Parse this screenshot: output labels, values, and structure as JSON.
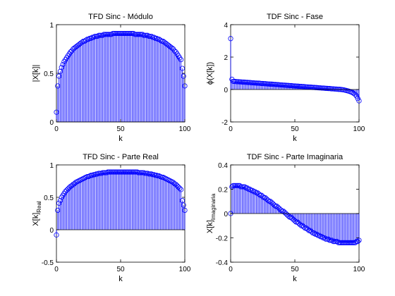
{
  "colors": {
    "stem": "#0000ff",
    "axes": "#000000",
    "background": "#ffffff"
  },
  "chart_data": [
    {
      "id": "p1",
      "type": "stem",
      "title": "TFD Sinc - Módulo",
      "xlabel": "k",
      "ylabel": "|X[k]|",
      "ylabel_main": "|X[k]|",
      "ylabel_sub": "",
      "xlim": [
        0,
        100
      ],
      "ylim": [
        0,
        1
      ],
      "xticks": [
        0,
        50,
        100
      ],
      "yticks": [
        0,
        0.5,
        1
      ],
      "xticklabels": [
        "0",
        "50",
        "100"
      ],
      "yticklabels": [
        "0",
        "0.5",
        "1"
      ],
      "x_start": 0,
      "x_step": 1,
      "values": [
        0.1,
        0.37,
        0.47,
        0.52,
        0.56,
        0.59,
        0.62,
        0.64,
        0.66,
        0.68,
        0.7,
        0.72,
        0.73,
        0.75,
        0.76,
        0.77,
        0.78,
        0.79,
        0.8,
        0.81,
        0.82,
        0.83,
        0.83,
        0.84,
        0.85,
        0.85,
        0.86,
        0.86,
        0.87,
        0.87,
        0.88,
        0.88,
        0.88,
        0.89,
        0.89,
        0.89,
        0.89,
        0.9,
        0.9,
        0.9,
        0.9,
        0.9,
        0.9,
        0.9,
        0.91,
        0.91,
        0.91,
        0.91,
        0.91,
        0.91,
        0.91,
        0.91,
        0.91,
        0.91,
        0.91,
        0.91,
        0.91,
        0.91,
        0.91,
        0.91,
        0.91,
        0.9,
        0.9,
        0.9,
        0.9,
        0.9,
        0.9,
        0.9,
        0.89,
        0.89,
        0.89,
        0.89,
        0.88,
        0.88,
        0.88,
        0.87,
        0.87,
        0.86,
        0.86,
        0.85,
        0.85,
        0.84,
        0.83,
        0.83,
        0.82,
        0.81,
        0.8,
        0.79,
        0.78,
        0.77,
        0.76,
        0.75,
        0.73,
        0.72,
        0.7,
        0.68,
        0.66,
        0.64,
        0.55,
        0.47,
        0.37
      ]
    },
    {
      "id": "p2",
      "type": "stem",
      "title": "TDF Sinc - Fase",
      "xlabel": "k",
      "ylabel": "ϕ(X[k])",
      "ylabel_main": "ϕ(X[k])",
      "ylabel_sub": "",
      "xlim": [
        0,
        100
      ],
      "ylim": [
        -2,
        4
      ],
      "xticks": [
        0,
        50,
        100
      ],
      "yticks": [
        -2,
        0,
        2,
        4
      ],
      "xticklabels": [
        "0",
        "50",
        "100"
      ],
      "yticklabels": [
        "-2",
        "0",
        "2",
        "4"
      ],
      "x_start": 0,
      "x_step": 1,
      "values": [
        3.14,
        0.63,
        0.5,
        0.5,
        0.49,
        0.48,
        0.48,
        0.47,
        0.47,
        0.46,
        0.46,
        0.45,
        0.44,
        0.44,
        0.43,
        0.43,
        0.42,
        0.41,
        0.41,
        0.4,
        0.4,
        0.39,
        0.39,
        0.38,
        0.37,
        0.37,
        0.36,
        0.36,
        0.35,
        0.34,
        0.34,
        0.33,
        0.33,
        0.32,
        0.31,
        0.31,
        0.3,
        0.3,
        0.29,
        0.28,
        0.28,
        0.27,
        0.27,
        0.26,
        0.25,
        0.25,
        0.24,
        0.24,
        0.23,
        0.22,
        0.22,
        0.21,
        0.21,
        0.2,
        0.19,
        0.19,
        0.18,
        0.18,
        0.17,
        0.16,
        0.16,
        0.15,
        0.15,
        0.14,
        0.13,
        0.13,
        0.12,
        0.12,
        0.11,
        0.1,
        0.1,
        0.09,
        0.09,
        0.08,
        0.07,
        0.07,
        0.06,
        0.06,
        0.05,
        0.04,
        0.04,
        0.03,
        0.03,
        0.02,
        0.01,
        0.01,
        0.0,
        -0.01,
        -0.02,
        -0.04,
        -0.06,
        -0.08,
        -0.1,
        -0.13,
        -0.16,
        -0.2,
        -0.25,
        -0.31,
        -0.4,
        -0.55,
        -0.7
      ]
    },
    {
      "id": "p3",
      "type": "stem",
      "title": "TFD Sinc - Parte Real",
      "xlabel": "k",
      "ylabel": "X[k]Real",
      "ylabel_main": "X[k]",
      "ylabel_sub": "Real",
      "xlim": [
        0,
        100
      ],
      "ylim": [
        -0.5,
        1
      ],
      "xticks": [
        0,
        50,
        100
      ],
      "yticks": [
        -0.5,
        0,
        0.5,
        1
      ],
      "xticklabels": [
        "0",
        "50",
        "100"
      ],
      "yticklabels": [
        "-0.5",
        "0",
        "0.5",
        "1"
      ],
      "x_start": 0,
      "x_step": 1,
      "values": [
        -0.08,
        0.3,
        0.41,
        0.45,
        0.5,
        0.53,
        0.56,
        0.59,
        0.61,
        0.63,
        0.65,
        0.67,
        0.68,
        0.7,
        0.71,
        0.73,
        0.74,
        0.75,
        0.76,
        0.77,
        0.78,
        0.79,
        0.8,
        0.81,
        0.82,
        0.82,
        0.83,
        0.84,
        0.84,
        0.85,
        0.85,
        0.86,
        0.86,
        0.87,
        0.87,
        0.87,
        0.88,
        0.88,
        0.88,
        0.88,
        0.89,
        0.89,
        0.89,
        0.89,
        0.89,
        0.89,
        0.89,
        0.89,
        0.89,
        0.89,
        0.89,
        0.89,
        0.89,
        0.89,
        0.89,
        0.89,
        0.89,
        0.89,
        0.89,
        0.89,
        0.89,
        0.89,
        0.89,
        0.89,
        0.88,
        0.88,
        0.88,
        0.88,
        0.88,
        0.87,
        0.87,
        0.87,
        0.86,
        0.86,
        0.86,
        0.85,
        0.85,
        0.84,
        0.84,
        0.83,
        0.83,
        0.82,
        0.81,
        0.81,
        0.8,
        0.79,
        0.78,
        0.77,
        0.76,
        0.75,
        0.74,
        0.73,
        0.71,
        0.7,
        0.68,
        0.66,
        0.64,
        0.62,
        0.45,
        0.38,
        0.3
      ]
    },
    {
      "id": "p4",
      "type": "stem",
      "title": "TDF Sinc - Parte Imaginaria",
      "xlabel": "k",
      "ylabel": "X[k]Imaginaria",
      "ylabel_main": "X[k]",
      "ylabel_sub": "Imaginaria",
      "xlim": [
        0,
        100
      ],
      "ylim": [
        -0.4,
        0.4
      ],
      "xticks": [
        0,
        50,
        100
      ],
      "yticks": [
        -0.4,
        -0.2,
        0,
        0.2,
        0.4
      ],
      "xticklabels": [
        "0",
        "50",
        "100"
      ],
      "yticklabels": [
        "-0.4",
        "-0.2",
        "0",
        "0.2",
        "0.4"
      ],
      "x_start": 0,
      "x_step": 1,
      "values": [
        0.0,
        0.22,
        0.23,
        0.23,
        0.23,
        0.23,
        0.23,
        0.23,
        0.22,
        0.22,
        0.22,
        0.22,
        0.21,
        0.21,
        0.2,
        0.2,
        0.19,
        0.19,
        0.18,
        0.18,
        0.17,
        0.17,
        0.16,
        0.15,
        0.15,
        0.14,
        0.13,
        0.13,
        0.12,
        0.11,
        0.1,
        0.1,
        0.09,
        0.08,
        0.07,
        0.06,
        0.06,
        0.05,
        0.04,
        0.03,
        0.02,
        0.02,
        0.01,
        0.0,
        -0.01,
        -0.02,
        -0.03,
        -0.03,
        -0.04,
        -0.05,
        -0.06,
        -0.07,
        -0.07,
        -0.08,
        -0.09,
        -0.1,
        -0.1,
        -0.11,
        -0.12,
        -0.12,
        -0.13,
        -0.14,
        -0.14,
        -0.15,
        -0.16,
        -0.16,
        -0.17,
        -0.17,
        -0.18,
        -0.18,
        -0.19,
        -0.19,
        -0.2,
        -0.2,
        -0.21,
        -0.21,
        -0.21,
        -0.22,
        -0.22,
        -0.22,
        -0.23,
        -0.23,
        -0.23,
        -0.23,
        -0.24,
        -0.24,
        -0.24,
        -0.24,
        -0.24,
        -0.24,
        -0.24,
        -0.24,
        -0.24,
        -0.24,
        -0.24,
        -0.24,
        -0.24,
        -0.24,
        -0.23,
        -0.23,
        -0.22
      ]
    }
  ]
}
